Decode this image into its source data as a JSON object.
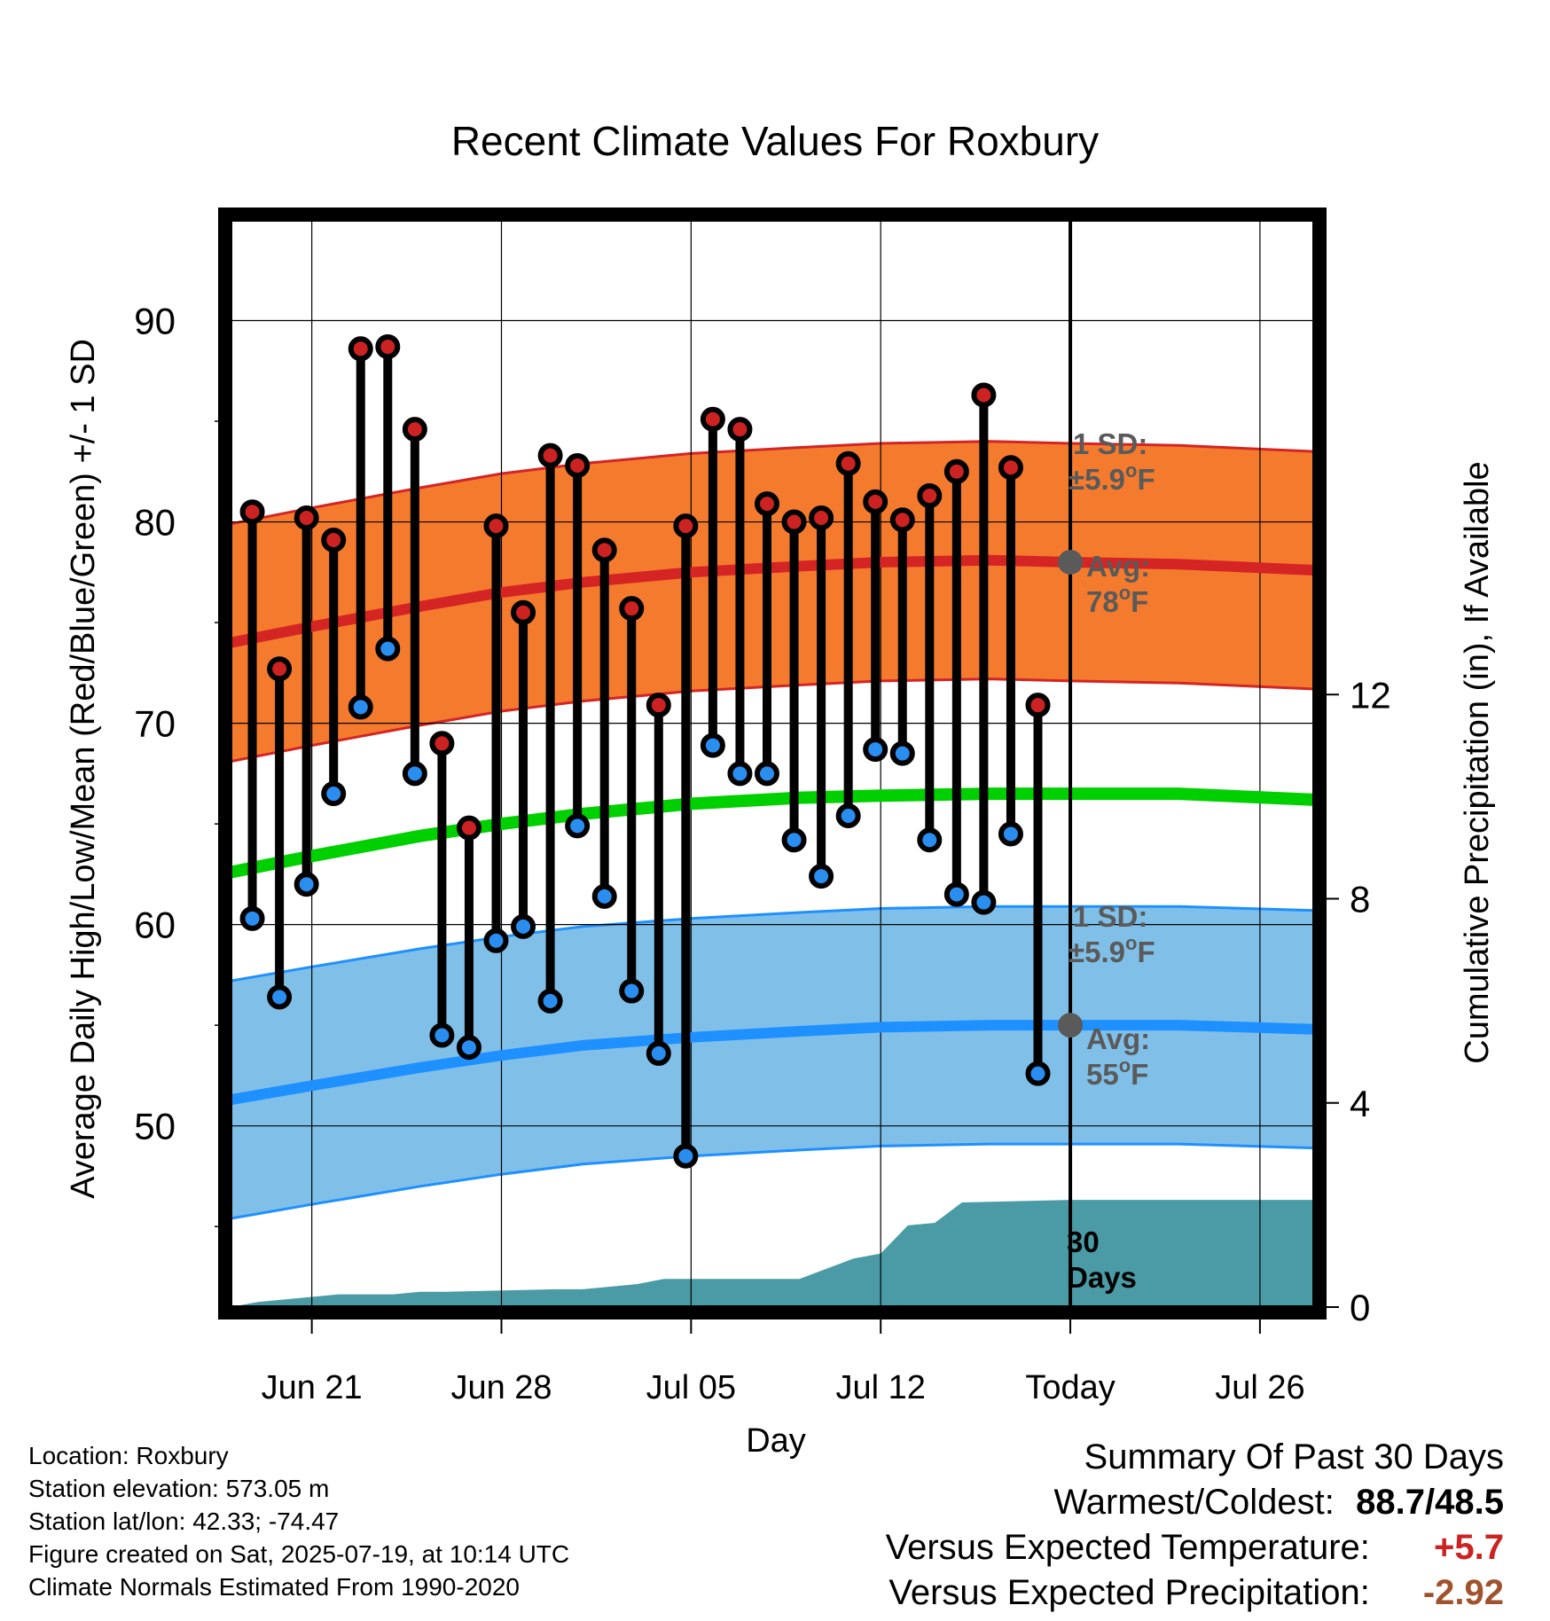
{
  "chart_data": {
    "type": "line",
    "title": "Recent Climate Values For Roxbury",
    "xlabel": "Day",
    "ylabel_left": "Average Daily High/Low/Mean (Red/Blue/Green) +/- 1 SD",
    "ylabel_right": "Cumulative Precipitation (in), If Available",
    "ylim_left": [
      41,
      95
    ],
    "ylim_right": [
      0,
      21.3
    ],
    "x_ticks": [
      "Jun 21",
      "Jun 28",
      "Jul 05",
      "Jul 12",
      "Today",
      "Jul 26"
    ],
    "y_ticks_left": [
      "50",
      "60",
      "70",
      "80",
      "90"
    ],
    "y_ticks_right": [
      "0",
      "4",
      "8",
      "12"
    ],
    "x_start": "Jun 18",
    "x_end": "Jul 28",
    "today": "Jul 19",
    "days": [
      "Jun 19",
      "Jun 20",
      "Jun 21",
      "Jun 22",
      "Jun 23",
      "Jun 24",
      "Jun 25",
      "Jun 26",
      "Jun 27",
      "Jun 28",
      "Jun 29",
      "Jun 30",
      "Jul 01",
      "Jul 02",
      "Jul 03",
      "Jul 04",
      "Jul 05",
      "Jul 06",
      "Jul 07",
      "Jul 08",
      "Jul 09",
      "Jul 10",
      "Jul 11",
      "Jul 12",
      "Jul 13",
      "Jul 14",
      "Jul 15",
      "Jul 16",
      "Jul 17",
      "Jul 18"
    ],
    "highs": [
      80.5,
      72.7,
      80.2,
      79.1,
      88.6,
      88.7,
      84.6,
      69.0,
      64.8,
      79.8,
      75.5,
      83.3,
      82.8,
      78.6,
      75.7,
      70.9,
      79.8,
      85.1,
      84.6,
      80.9,
      80.0,
      80.2,
      82.9,
      81.0,
      80.1,
      81.3,
      82.5,
      86.3,
      82.7,
      70.9
    ],
    "lows": [
      60.3,
      56.4,
      62.0,
      66.5,
      70.8,
      73.7,
      67.5,
      54.5,
      53.9,
      59.2,
      59.9,
      56.2,
      64.9,
      61.4,
      56.7,
      53.6,
      48.5,
      68.9,
      67.5,
      67.5,
      64.2,
      62.4,
      65.4,
      68.7,
      68.5,
      64.2,
      61.5,
      61.1,
      64.5,
      52.6
    ],
    "normals": {
      "dates": [
        "Jun 18",
        "Jun 21",
        "Jun 25",
        "Jun 28",
        "Jul 01",
        "Jul 05",
        "Jul 09",
        "Jul 12",
        "Jul 16",
        "Jul 19",
        "Jul 23",
        "Jul 28"
      ],
      "high_avg": [
        74.0,
        74.8,
        75.8,
        76.5,
        77.0,
        77.5,
        77.8,
        78.0,
        78.1,
        78.0,
        77.9,
        77.6
      ],
      "low_avg": [
        51.3,
        52.0,
        52.9,
        53.5,
        54.0,
        54.4,
        54.7,
        54.9,
        55.0,
        55.0,
        55.0,
        54.8
      ],
      "mean_avg": [
        62.6,
        63.4,
        64.4,
        65.0,
        65.5,
        66.0,
        66.3,
        66.4,
        66.5,
        66.5,
        66.5,
        66.2
      ],
      "sd": 5.9
    },
    "precip_cumulative": {
      "dates": [
        "Jun 18",
        "Jun 19",
        "Jun 22",
        "Jun 24",
        "Jun 25",
        "Jun 26",
        "Jun 30",
        "Jul 01",
        "Jul 03",
        "Jul 04",
        "Jul 09",
        "Jul 10",
        "Jul 11",
        "Jul 12",
        "Jul 13",
        "Jul 14",
        "Jul 15",
        "Jul 19",
        "Jul 28"
      ],
      "values": [
        0.0,
        0.1,
        0.25,
        0.25,
        0.3,
        0.3,
        0.35,
        0.35,
        0.45,
        0.55,
        0.55,
        0.75,
        0.95,
        1.05,
        1.6,
        1.65,
        2.05,
        2.1,
        2.1
      ]
    },
    "annotations": {
      "high_sd": "1 SD:",
      "high_sd_value": "±5.9°F",
      "high_avg_label": "Avg:",
      "high_avg_value": "78°F",
      "low_sd": "1 SD:",
      "low_sd_value": "±5.9°F",
      "low_avg_label": "Avg:",
      "low_avg_value": "55°F",
      "days_count": "30",
      "days_word": "Days"
    },
    "colors": {
      "high_band": "#f47b2e",
      "high_line": "#d42424",
      "low_band": "#80c0e8",
      "low_line": "#1e90ff",
      "mean_line": "#00d000",
      "precip": "#4a9ba5",
      "high_dot": "#cc2222",
      "low_dot": "#2a8ef0",
      "annot": "#5a5a5a"
    }
  },
  "info": {
    "location": "Location: Roxbury",
    "elevation": "Station elevation: 573.05 m",
    "latlon": "Station lat/lon: 42.33; -74.47",
    "created": "Figure created on Sat, 2025-07-19, at 10:14 UTC",
    "normals": "Climate Normals Estimated From 1990-2020"
  },
  "summary": {
    "heading": "Summary Of Past 30 Days",
    "warmest_label": "Warmest/Coldest:",
    "warmest_value": "88.7/48.5",
    "temp_label": "Versus Expected Temperature:",
    "temp_value": "+5.7",
    "temp_color": "#cc2222",
    "precip_label": "Versus Expected Precipitation:",
    "precip_value": "-2.92",
    "precip_color": "#a0522d"
  }
}
